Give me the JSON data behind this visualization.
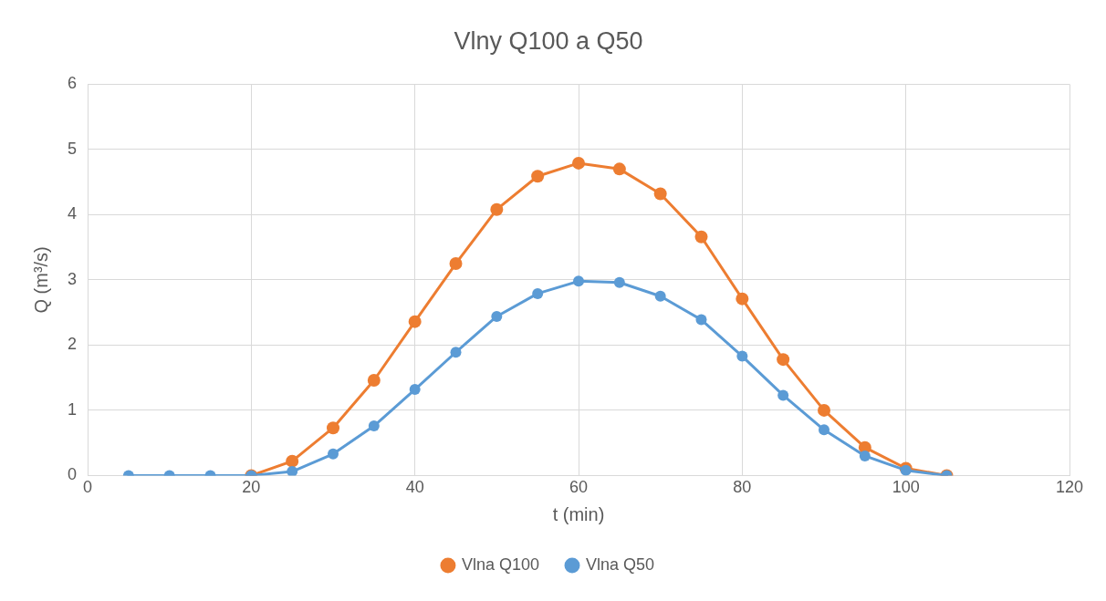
{
  "chart_data": {
    "type": "line",
    "title": "Vlny Q100 a Q50",
    "xlabel": "t (min)",
    "ylabel": "Q (m³/s)",
    "x": [
      5,
      10,
      15,
      20,
      25,
      30,
      35,
      40,
      45,
      50,
      55,
      60,
      65,
      70,
      75,
      80,
      85,
      90,
      95,
      100,
      105
    ],
    "series": [
      {
        "name": "Vlna Q100",
        "color": "#ed7d31",
        "values": [
          null,
          null,
          null,
          0,
          0.22,
          0.73,
          1.46,
          2.36,
          3.25,
          4.08,
          4.59,
          4.79,
          4.7,
          4.32,
          3.66,
          2.71,
          1.78,
          1.0,
          0.43,
          0.11,
          0
        ]
      },
      {
        "name": "Vlna Q50",
        "color": "#5b9bd5",
        "values": [
          0,
          0,
          0,
          0,
          0.06,
          0.33,
          0.76,
          1.32,
          1.89,
          2.44,
          2.79,
          2.98,
          2.96,
          2.75,
          2.39,
          1.83,
          1.23,
          0.7,
          0.3,
          0.08,
          0
        ]
      }
    ],
    "xlim": [
      0,
      120
    ],
    "xticks": [
      0,
      20,
      40,
      60,
      80,
      100,
      120
    ],
    "ylim": [
      0,
      6
    ],
    "yticks": [
      0,
      1,
      2,
      3,
      4,
      5,
      6
    ],
    "grid": true,
    "legend": "bottom",
    "marker": "circle",
    "line_style": "solid"
  }
}
